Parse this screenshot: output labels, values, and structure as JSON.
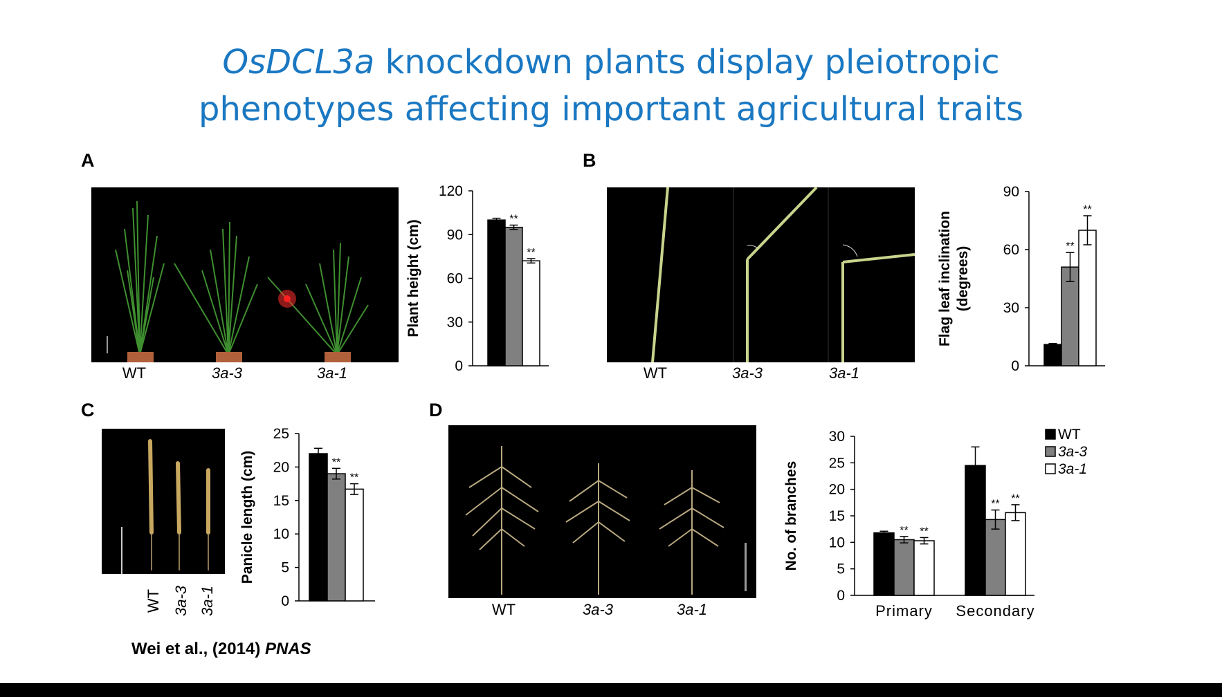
{
  "slide": {
    "title_italic": "OsDCL3a",
    "title_rest": " knockdown plants display pleiotropic",
    "title_line2": "phenotypes affecting important agricultural traits",
    "citation_main": "Wei et al., (2014) ",
    "citation_journal": "PNAS"
  },
  "panels": {
    "A": {
      "label": "A",
      "captions": [
        "WT",
        "3a-3",
        "3a-1"
      ]
    },
    "B": {
      "label": "B",
      "captions": [
        "WT",
        "3a-3",
        "3a-1"
      ]
    },
    "C": {
      "label": "C",
      "captions": [
        "WT",
        "3a-3",
        "3a-1"
      ]
    },
    "D": {
      "label": "D",
      "captions": [
        "WT",
        "3a-3",
        "3a-1"
      ]
    }
  },
  "colors": {
    "title": "#1a78c2",
    "wt": "#000000",
    "3a-3": "#808080",
    "3a-1": "#ffffff"
  },
  "chart_data": [
    {
      "panel": "A",
      "type": "bar",
      "categories": [
        "WT",
        "3a-3",
        "3a-1"
      ],
      "values": [
        100,
        95,
        72
      ],
      "errors": [
        1.2,
        1.5,
        1.5
      ],
      "significance": [
        "",
        "**",
        "**"
      ],
      "ylabel": "Plant height (cm)",
      "ylim": [
        0,
        120
      ],
      "yticks": [
        0,
        30,
        60,
        90,
        120
      ]
    },
    {
      "panel": "B",
      "type": "bar",
      "categories": [
        "WT",
        "3a-3",
        "3a-1"
      ],
      "values": [
        11,
        51,
        70
      ],
      "errors": [
        0.5,
        7.5,
        7.5
      ],
      "significance": [
        "",
        "**",
        "**"
      ],
      "ylabel_line1": "Flag leaf inclination",
      "ylabel_line2": "(degrees)",
      "ylim": [
        0,
        90
      ],
      "yticks": [
        0,
        30,
        60,
        90
      ]
    },
    {
      "panel": "C",
      "type": "bar",
      "categories": [
        "WT",
        "3a-3",
        "3a-1"
      ],
      "values": [
        22,
        19,
        16.7
      ],
      "errors": [
        0.8,
        0.8,
        0.8
      ],
      "significance": [
        "",
        "**",
        "**"
      ],
      "ylabel": "Panicle length (cm)",
      "ylim": [
        0,
        25
      ],
      "yticks": [
        0,
        5,
        10,
        15,
        20,
        25
      ]
    },
    {
      "panel": "D",
      "type": "bar",
      "categories": [
        "Primary",
        "Secondary"
      ],
      "series": [
        {
          "name": "WT",
          "values": [
            11.8,
            24.5
          ],
          "errors": [
            0.3,
            3.5
          ],
          "significance": [
            "",
            ""
          ]
        },
        {
          "name": "3a-3",
          "values": [
            10.5,
            14.3
          ],
          "errors": [
            0.6,
            1.8
          ],
          "significance": [
            "**",
            "**"
          ]
        },
        {
          "name": "3a-1",
          "values": [
            10.3,
            15.6
          ],
          "errors": [
            0.6,
            1.5
          ],
          "significance": [
            "**",
            "**"
          ]
        }
      ],
      "ylabel": "No. of branches",
      "ylim": [
        0,
        30
      ],
      "yticks": [
        0,
        5,
        10,
        15,
        20,
        25,
        30
      ],
      "legend_position": "top-right"
    }
  ]
}
